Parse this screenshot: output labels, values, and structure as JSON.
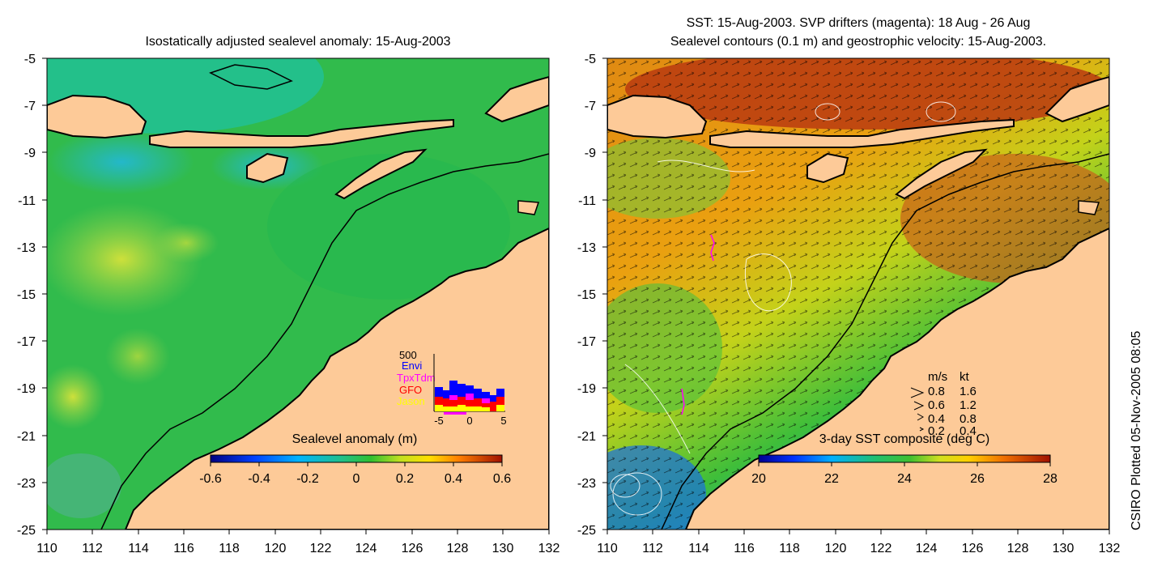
{
  "left_panel": {
    "title": "Isostatically adjusted sealevel anomaly: 15-Aug-2003",
    "x_ticks": [
      "110",
      "112",
      "114",
      "116",
      "118",
      "120",
      "122",
      "124",
      "126",
      "128",
      "130",
      "132"
    ],
    "y_ticks": [
      "-5",
      "-7",
      "-9",
      "-11",
      "-13",
      "-15",
      "-17",
      "-19",
      "-21",
      "-23",
      "-25"
    ],
    "colorbar": {
      "label": "Sealevel anomaly (m)",
      "ticks": [
        "-0.6",
        "-0.4",
        "-0.2",
        "0",
        "0.2",
        "0.4",
        "0.6"
      ],
      "range": [
        -0.6,
        0.6
      ]
    },
    "inset": {
      "ymax_label": "500",
      "x_ticks": [
        "-5",
        "0",
        "5"
      ],
      "legend": [
        {
          "label": "Envi",
          "color": "#0000ff"
        },
        {
          "label": "TpxTdm",
          "color": "#ff00ff"
        },
        {
          "label": "GFO",
          "color": "#ff0000"
        },
        {
          "label": "Jason",
          "color": "#ffff00"
        }
      ]
    }
  },
  "right_panel": {
    "title_line1": "SST: 15-Aug-2003. SVP drifters (magenta): 18 Aug - 26 Aug",
    "title_line2": "Sealevel contours (0.1 m) and geostrophic velocity: 15-Aug-2003.",
    "x_ticks": [
      "110",
      "112",
      "114",
      "116",
      "118",
      "120",
      "122",
      "124",
      "126",
      "128",
      "130",
      "132"
    ],
    "y_ticks": [
      "-5",
      "-7",
      "-9",
      "-11",
      "-13",
      "-15",
      "-17",
      "-19",
      "-21",
      "-23",
      "-25"
    ],
    "colorbar": {
      "label": "3-day SST composite (deg C)",
      "ticks": [
        "20",
        "22",
        "24",
        "26",
        "28"
      ],
      "range": [
        20,
        28
      ]
    },
    "velocity_legend": {
      "header_ms": "m/s",
      "header_kt": "kt",
      "rows": [
        {
          "ms": "0.8",
          "kt": "1.6"
        },
        {
          "ms": "0.6",
          "kt": "1.2"
        },
        {
          "ms": "0.4",
          "kt": "0.8"
        },
        {
          "ms": "0.2",
          "kt": "0.4"
        }
      ]
    }
  },
  "credit": "CSIRO Plotted 05-Nov-2005 08:05",
  "colors": {
    "land": "#fdca98",
    "anomaly_base": "#27b849",
    "sst_warm": "#d8590c"
  }
}
